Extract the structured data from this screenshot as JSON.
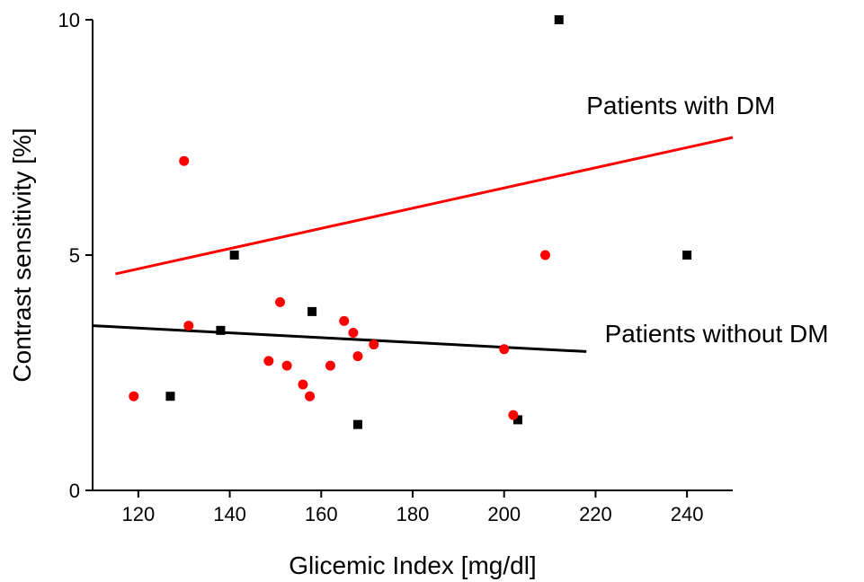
{
  "chart_data": {
    "type": "scatter",
    "xlabel": "Glicemic Index [mg/dl]",
    "ylabel": "Contrast sensitivity [%]",
    "xlim": [
      110,
      250
    ],
    "ylim": [
      0,
      10
    ],
    "xticks": [
      120,
      140,
      160,
      180,
      200,
      220,
      240
    ],
    "yticks": [
      0,
      5,
      10
    ],
    "grid": false,
    "series": [
      {
        "marker": "square",
        "color": "#000000",
        "points": [
          {
            "x": 127,
            "y": 2.0
          },
          {
            "x": 138,
            "y": 3.4
          },
          {
            "x": 141,
            "y": 5.0
          },
          {
            "x": 158,
            "y": 3.8
          },
          {
            "x": 168,
            "y": 1.4
          },
          {
            "x": 203,
            "y": 1.5
          },
          {
            "x": 212,
            "y": 10.0
          },
          {
            "x": 240,
            "y": 5.0
          }
        ],
        "fit": {
          "x": [
            110,
            218
          ],
          "y": [
            3.5,
            2.95
          ]
        }
      },
      {
        "marker": "circle",
        "color": "#ff0000",
        "points": [
          {
            "x": 119,
            "y": 2.0
          },
          {
            "x": 130,
            "y": 7.0
          },
          {
            "x": 131,
            "y": 3.5
          },
          {
            "x": 148.5,
            "y": 2.75
          },
          {
            "x": 151,
            "y": 4.0
          },
          {
            "x": 152.5,
            "y": 2.65
          },
          {
            "x": 156,
            "y": 2.25
          },
          {
            "x": 157.5,
            "y": 2.0
          },
          {
            "x": 162,
            "y": 2.65
          },
          {
            "x": 165,
            "y": 3.6
          },
          {
            "x": 167,
            "y": 3.35
          },
          {
            "x": 168,
            "y": 2.85
          },
          {
            "x": 171.5,
            "y": 3.1
          },
          {
            "x": 200,
            "y": 3.0
          },
          {
            "x": 202,
            "y": 1.6
          },
          {
            "x": 209,
            "y": 5.0
          }
        ],
        "fit": {
          "x": [
            115,
            250
          ],
          "y": [
            4.6,
            7.5
          ]
        }
      }
    ],
    "annotations": [
      {
        "text": "Patients with DM",
        "x": 218,
        "y": 8.0
      },
      {
        "text": "Patients without DM",
        "x": 222,
        "y": 3.15
      }
    ]
  }
}
